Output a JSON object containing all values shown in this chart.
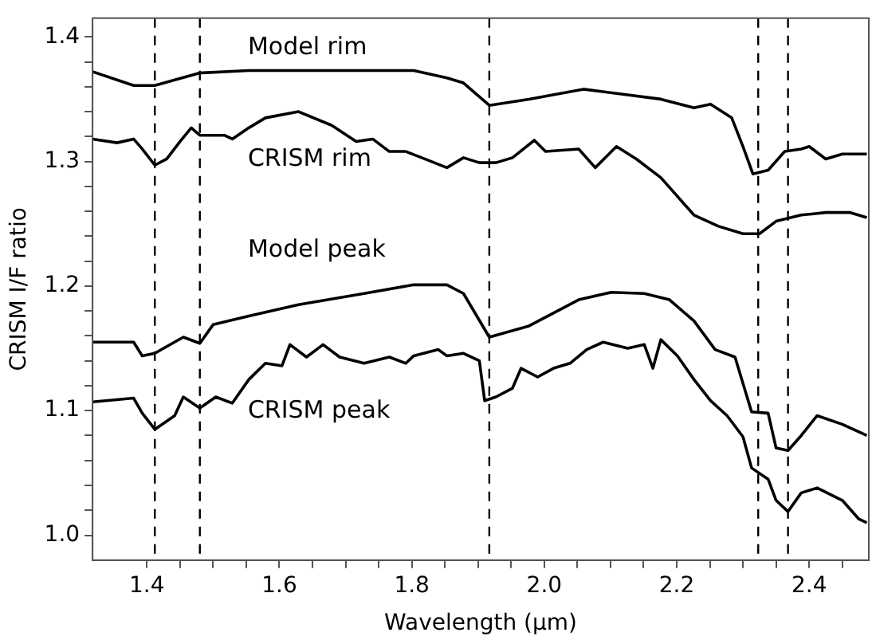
{
  "chart_data": {
    "type": "line",
    "xlabel": "Wavelength (μm)",
    "ylabel": "CRISM I/F ratio",
    "xlim": [
      1.318,
      2.49
    ],
    "ylim": [
      0.98,
      1.415
    ],
    "xticks": [
      1.4,
      {
        "value": 1.45,
        "label": null
      },
      {
        "value": 1.5,
        "label": null
      },
      {
        "value": 1.55,
        "label": null
      },
      1.6,
      {
        "value": 1.65,
        "label": null
      },
      {
        "value": 1.7,
        "label": null
      },
      {
        "value": 1.75,
        "label": null
      },
      1.8,
      {
        "value": 1.85,
        "label": null
      },
      {
        "value": 1.9,
        "label": null
      },
      {
        "value": 1.95,
        "label": null
      },
      {
        "value": 2.0,
        "label": "2.0"
      },
      {
        "value": 2.05,
        "label": null
      },
      {
        "value": 2.1,
        "label": null
      },
      {
        "value": 2.15,
        "label": null
      },
      2.2,
      {
        "value": 2.25,
        "label": null
      },
      {
        "value": 2.3,
        "label": null
      },
      {
        "value": 2.35,
        "label": null
      },
      2.4,
      {
        "value": 2.45,
        "label": null
      }
    ],
    "yticks": [
      {
        "value": 1.0,
        "label": "1.0"
      },
      {
        "value": 1.02,
        "label": null
      },
      {
        "value": 1.04,
        "label": null
      },
      {
        "value": 1.06,
        "label": null
      },
      {
        "value": 1.08,
        "label": null
      },
      1.1,
      {
        "value": 1.12,
        "label": null
      },
      {
        "value": 1.14,
        "label": null
      },
      {
        "value": 1.16,
        "label": null
      },
      {
        "value": 1.18,
        "label": null
      },
      1.2,
      {
        "value": 1.22,
        "label": null
      },
      {
        "value": 1.24,
        "label": null
      },
      {
        "value": 1.26,
        "label": null
      },
      {
        "value": 1.28,
        "label": null
      },
      1.3,
      {
        "value": 1.32,
        "label": null
      },
      {
        "value": 1.34,
        "label": null
      },
      {
        "value": 1.36,
        "label": null
      },
      {
        "value": 1.38,
        "label": null
      },
      1.4
    ],
    "grid": false,
    "legend": false,
    "marker": "none",
    "line_style": "solid",
    "series": [
      {
        "name": "Model rim",
        "color": "#000000",
        "x": [
          1.318,
          1.38,
          1.412,
          1.48,
          1.554,
          1.703,
          1.803,
          1.853,
          1.878,
          1.917,
          1.977,
          2.059,
          2.176,
          2.226,
          2.251,
          2.283,
          2.3,
          2.315,
          2.338,
          2.363,
          2.388,
          2.4,
          2.425,
          2.45,
          2.487
        ],
        "values": [
          1.372,
          1.361,
          1.361,
          1.371,
          1.373,
          1.373,
          1.373,
          1.367,
          1.363,
          1.345,
          1.35,
          1.358,
          1.35,
          1.343,
          1.346,
          1.335,
          1.312,
          1.29,
          1.293,
          1.308,
          1.31,
          1.312,
          1.302,
          1.306,
          1.306
        ]
      },
      {
        "name": "CRISM rim",
        "color": "#000000",
        "x": [
          1.318,
          1.355,
          1.38,
          1.393,
          1.412,
          1.43,
          1.45,
          1.467,
          1.48,
          1.517,
          1.529,
          1.554,
          1.579,
          1.629,
          1.679,
          1.716,
          1.741,
          1.766,
          1.791,
          1.815,
          1.853,
          1.878,
          1.902,
          1.927,
          1.952,
          1.985,
          2.002,
          2.052,
          2.077,
          2.109,
          2.139,
          2.176,
          2.226,
          2.263,
          2.3,
          2.325,
          2.35,
          2.388,
          2.425,
          2.462,
          2.487
        ],
        "values": [
          1.318,
          1.315,
          1.318,
          1.31,
          1.297,
          1.302,
          1.316,
          1.327,
          1.321,
          1.321,
          1.318,
          1.327,
          1.335,
          1.34,
          1.329,
          1.316,
          1.318,
          1.308,
          1.308,
          1.303,
          1.295,
          1.303,
          1.299,
          1.299,
          1.303,
          1.317,
          1.308,
          1.31,
          1.295,
          1.312,
          1.302,
          1.287,
          1.257,
          1.248,
          1.242,
          1.242,
          1.252,
          1.257,
          1.259,
          1.259,
          1.255
        ]
      },
      {
        "name": "Model peak",
        "color": "#000000",
        "x": [
          1.318,
          1.38,
          1.393,
          1.412,
          1.455,
          1.48,
          1.5,
          1.554,
          1.629,
          1.728,
          1.803,
          1.853,
          1.878,
          1.917,
          1.977,
          2.052,
          2.101,
          2.151,
          2.189,
          2.226,
          2.258,
          2.288,
          2.313,
          2.338,
          2.35,
          2.368,
          2.388,
          2.412,
          2.45,
          2.487
        ],
        "values": [
          1.155,
          1.155,
          1.144,
          1.146,
          1.159,
          1.154,
          1.169,
          1.176,
          1.185,
          1.194,
          1.201,
          1.201,
          1.194,
          1.159,
          1.168,
          1.189,
          1.195,
          1.194,
          1.189,
          1.172,
          1.149,
          1.143,
          1.099,
          1.098,
          1.07,
          1.068,
          1.08,
          1.096,
          1.089,
          1.08
        ]
      },
      {
        "name": "CRISM peak",
        "color": "#000000",
        "x": [
          1.318,
          1.38,
          1.393,
          1.412,
          1.442,
          1.455,
          1.48,
          1.504,
          1.529,
          1.554,
          1.579,
          1.604,
          1.616,
          1.641,
          1.666,
          1.691,
          1.728,
          1.766,
          1.791,
          1.803,
          1.84,
          1.853,
          1.878,
          1.902,
          1.91,
          1.927,
          1.952,
          1.965,
          1.99,
          2.014,
          2.039,
          2.064,
          2.089,
          2.126,
          2.151,
          2.164,
          2.176,
          2.201,
          2.226,
          2.251,
          2.276,
          2.3,
          2.313,
          2.338,
          2.35,
          2.368,
          2.388,
          2.412,
          2.45,
          2.475,
          2.487
        ],
        "values": [
          1.107,
          1.11,
          1.098,
          1.085,
          1.096,
          1.111,
          1.102,
          1.111,
          1.106,
          1.125,
          1.138,
          1.136,
          1.153,
          1.143,
          1.153,
          1.143,
          1.138,
          1.143,
          1.138,
          1.144,
          1.149,
          1.144,
          1.146,
          1.14,
          1.108,
          1.111,
          1.118,
          1.134,
          1.127,
          1.134,
          1.138,
          1.149,
          1.155,
          1.15,
          1.153,
          1.134,
          1.157,
          1.144,
          1.125,
          1.108,
          1.096,
          1.079,
          1.054,
          1.045,
          1.028,
          1.019,
          1.034,
          1.038,
          1.028,
          1.013,
          1.01
        ]
      }
    ],
    "ref_lines": [
      {
        "axis": "x",
        "value": 1.412,
        "line_style": "dashed"
      },
      {
        "axis": "x",
        "value": 1.48,
        "line_style": "dashed"
      },
      {
        "axis": "x",
        "value": 1.917,
        "line_style": "dashed"
      },
      {
        "axis": "x",
        "value": 2.323,
        "line_style": "dashed"
      },
      {
        "axis": "x",
        "value": 2.368,
        "line_style": "dashed"
      }
    ]
  }
}
